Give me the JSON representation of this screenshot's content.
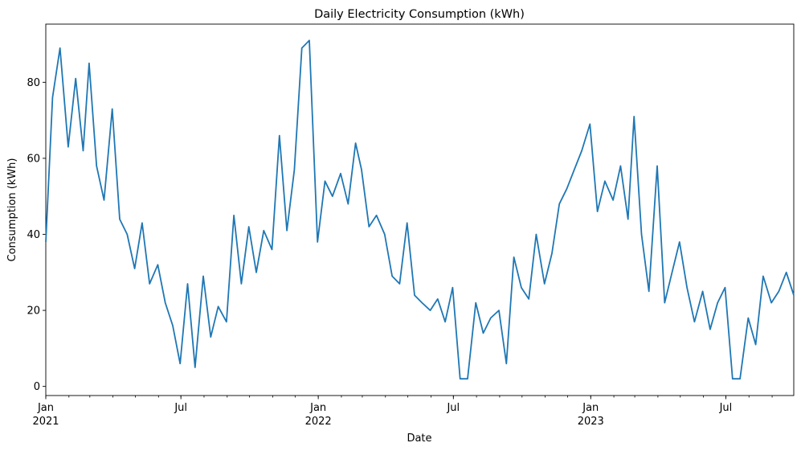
{
  "chart_data": {
    "type": "line",
    "title": "Daily Electricity Consumption (kWh)",
    "xlabel": "Date",
    "ylabel": "Consumption (kWh)",
    "xlim": [
      "2021-01-01",
      "2023-09-30"
    ],
    "ylim": [
      -2.4,
      95.3
    ],
    "y_ticks": [
      0,
      20,
      40,
      60,
      80
    ],
    "y_tick_labels": [
      "0",
      "20",
      "40",
      "60",
      "80"
    ],
    "x_major_ticks": [
      {
        "date": "2021-01-01",
        "label": "Jan",
        "sublabel": "2021"
      },
      {
        "date": "2021-07-01",
        "label": "Jul",
        "sublabel": ""
      },
      {
        "date": "2022-01-01",
        "label": "Jan",
        "sublabel": "2022"
      },
      {
        "date": "2022-07-01",
        "label": "Jul",
        "sublabel": ""
      },
      {
        "date": "2023-01-01",
        "label": "Jan",
        "sublabel": "2023"
      },
      {
        "date": "2023-07-01",
        "label": "Jul",
        "sublabel": ""
      }
    ],
    "x_minor_ticks": "monthly",
    "grid": false,
    "legend": "none",
    "line_color": "#1f77b4",
    "series": [
      {
        "x": [
          "2021-01-01",
          "2021-01-10",
          "2021-01-20",
          "2021-01-31",
          "2021-02-10",
          "2021-02-20",
          "2021-02-28",
          "2021-03-10",
          "2021-03-20",
          "2021-03-31",
          "2021-04-10",
          "2021-04-20",
          "2021-04-30",
          "2021-05-10",
          "2021-05-20",
          "2021-05-31",
          "2021-06-10",
          "2021-06-20",
          "2021-06-30",
          "2021-07-10",
          "2021-07-20",
          "2021-07-31",
          "2021-08-10",
          "2021-08-20",
          "2021-08-31",
          "2021-09-10",
          "2021-09-20",
          "2021-09-30",
          "2021-10-10",
          "2021-10-20",
          "2021-10-31",
          "2021-11-10",
          "2021-11-20",
          "2021-11-30",
          "2021-12-10",
          "2021-12-20",
          "2021-12-31",
          "2022-01-10",
          "2022-01-20",
          "2022-01-31",
          "2022-02-10",
          "2022-02-20",
          "2022-02-28",
          "2022-03-10",
          "2022-03-20",
          "2022-03-31",
          "2022-04-10",
          "2022-04-20",
          "2022-04-30",
          "2022-05-10",
          "2022-05-20",
          "2022-05-31",
          "2022-06-10",
          "2022-06-20",
          "2022-06-30",
          "2022-07-10",
          "2022-07-20",
          "2022-07-31",
          "2022-08-10",
          "2022-08-20",
          "2022-08-31",
          "2022-09-10",
          "2022-09-20",
          "2022-09-30",
          "2022-10-10",
          "2022-10-20",
          "2022-10-31",
          "2022-11-10",
          "2022-11-20",
          "2022-11-30",
          "2022-12-10",
          "2022-12-20",
          "2022-12-31",
          "2023-01-10",
          "2023-01-20",
          "2023-01-31",
          "2023-02-10",
          "2023-02-20",
          "2023-02-28",
          "2023-03-10",
          "2023-03-20",
          "2023-03-31",
          "2023-04-10",
          "2023-04-20",
          "2023-04-30",
          "2023-05-10",
          "2023-05-20",
          "2023-05-31",
          "2023-06-10",
          "2023-06-20",
          "2023-06-30",
          "2023-07-10",
          "2023-07-20",
          "2023-07-31",
          "2023-08-10",
          "2023-08-20",
          "2023-08-31",
          "2023-09-10",
          "2023-09-20",
          "2023-09-30"
        ],
        "values": [
          38,
          76,
          89,
          63,
          81,
          62,
          85,
          58,
          49,
          73,
          44,
          40,
          31,
          43,
          27,
          32,
          22,
          16,
          6,
          27,
          5,
          29,
          13,
          21,
          17,
          45,
          27,
          42,
          30,
          41,
          36,
          66,
          41,
          57,
          89,
          91,
          38,
          54,
          50,
          56,
          48,
          64,
          57,
          42,
          45,
          40,
          29,
          27,
          43,
          24,
          22,
          20,
          23,
          17,
          26,
          2,
          2,
          22,
          14,
          18,
          20,
          6,
          34,
          26,
          23,
          40,
          27,
          35,
          48,
          52,
          57,
          62,
          69,
          46,
          54,
          49,
          58,
          44,
          71,
          40,
          25,
          58,
          22,
          30,
          38,
          26,
          17,
          25,
          15,
          22,
          26,
          2,
          2,
          18,
          11,
          29,
          22,
          25,
          30,
          24
        ]
      }
    ]
  }
}
